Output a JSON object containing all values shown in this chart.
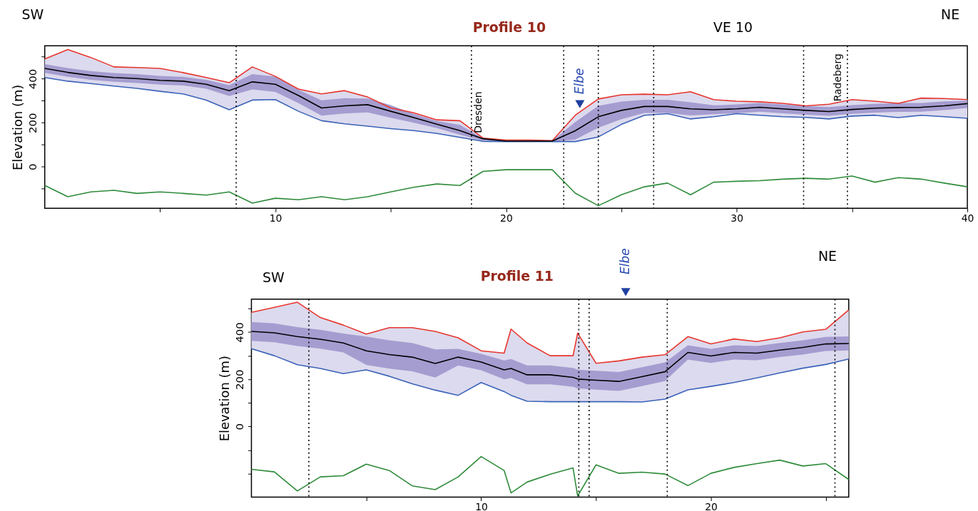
{
  "chart_data": [
    {
      "type": "line",
      "title": "Profile 10",
      "ylabel": "Elevation (m)",
      "annotations": [
        "SW",
        "NE",
        "VE 10",
        {
          "text": "Dresden",
          "x": 18.8,
          "y": 140
        },
        {
          "text": "Elbe",
          "x": 23.2,
          "y": 252
        },
        {
          "text": "Radeberg",
          "x": 34.4,
          "y": 284
        }
      ],
      "x": [
        0,
        1,
        2,
        3,
        4,
        5,
        6,
        7,
        8,
        9,
        10,
        11,
        12,
        13,
        14,
        15,
        16,
        17,
        18,
        19,
        20,
        21,
        22,
        23,
        24,
        25,
        26,
        27,
        28,
        29,
        30,
        31,
        32,
        33,
        34,
        35,
        36,
        37,
        38,
        39,
        40
      ],
      "series": [
        {
          "color": "#e8352c",
          "values": [
            490,
            533,
            497,
            454,
            451,
            447,
            428,
            406,
            382,
            454,
            411,
            353,
            331,
            346,
            317,
            267,
            245,
            213,
            209,
            130,
            121,
            121,
            118,
            234,
            308,
            327,
            330,
            327,
            341,
            305,
            298,
            295,
            288,
            277,
            284,
            305,
            298,
            288,
            312,
            310,
            305
          ]
        },
        {
          "color": "#3a62b8",
          "values": [
            406,
            389,
            378,
            367,
            356,
            343,
            331,
            303,
            259,
            303,
            305,
            252,
            209,
            195,
            184,
            173,
            164,
            151,
            133,
            115,
            114,
            114,
            114,
            114,
            135,
            192,
            234,
            241,
            217,
            227,
            241,
            234,
            227,
            224,
            217,
            230,
            234,
            223,
            234,
            227,
            220
          ],
          "lower": [
            406,
            389,
            378,
            367,
            356,
            343,
            331,
            303,
            259,
            303,
            305,
            252,
            209,
            195,
            184,
            173,
            164,
            151,
            133,
            115,
            114,
            114,
            114,
            114,
            135,
            192,
            234,
            241,
            217,
            227,
            241,
            234,
            227,
            224,
            217,
            230,
            234,
            223,
            234,
            227,
            220
          ],
          "upper": [
            490,
            533,
            497,
            454,
            451,
            447,
            428,
            406,
            382,
            454,
            411,
            353,
            331,
            346,
            317,
            267,
            245,
            213,
            209,
            130,
            121,
            121,
            118,
            234,
            308,
            327,
            330,
            327,
            341,
            305,
            298,
            295,
            288,
            277,
            284,
            305,
            298,
            288,
            312,
            310,
            305
          ]
        },
        {
          "color": "#000000",
          "values": [
            447,
            429,
            415,
            406,
            401,
            393,
            389,
            375,
            346,
            386,
            375,
            324,
            267,
            277,
            282,
            252,
            223,
            193,
            164,
            127,
            116,
            116,
            116,
            163,
            227,
            256,
            274,
            274,
            263,
            259,
            263,
            270,
            263,
            256,
            251,
            260,
            266,
            269,
            270,
            277,
            287
          ],
          "lower": [
            427,
            409,
            395,
            386,
            381,
            373,
            369,
            355,
            321,
            351,
            340,
            289,
            232,
            242,
            247,
            222,
            200,
            175,
            145,
            118,
            114,
            114,
            114,
            123,
            177,
            216,
            244,
            244,
            233,
            239,
            243,
            250,
            243,
            236,
            231,
            240,
            246,
            249,
            250,
            257,
            267
          ],
          "upper": [
            467,
            449,
            435,
            426,
            421,
            413,
            409,
            395,
            371,
            421,
            410,
            350,
            302,
            312,
            310,
            280,
            240,
            208,
            190,
            129,
            121,
            121,
            118,
            203,
            277,
            296,
            304,
            304,
            293,
            279,
            283,
            290,
            283,
            276,
            271,
            280,
            286,
            289,
            290,
            297,
            300
          ]
        },
        {
          "color": "#2e8b3a",
          "values": [
            -86,
            -137,
            -115,
            -108,
            -122,
            -115,
            -122,
            -130,
            -115,
            -166,
            -144,
            -151,
            -137,
            -151,
            -137,
            -115,
            -94,
            -79,
            -86,
            -22,
            -14,
            -14,
            -14,
            -121,
            -178,
            -128,
            -92,
            -75,
            -128,
            -71,
            -67,
            -64,
            -57,
            -53,
            -57,
            -43,
            -71,
            -50,
            -57,
            -75,
            -92
          ]
        }
      ],
      "xlim": [
        0,
        40
      ],
      "xticks": [
        {
          "value": 5,
          "label": null
        },
        10,
        {
          "value": 15,
          "label": null
        },
        20,
        {
          "value": 25,
          "label": null
        },
        30,
        {
          "value": 35,
          "label": null
        },
        40
      ],
      "ylim": [
        -190,
        550
      ],
      "yticks": [
        {
          "value": -100,
          "label": null
        },
        0,
        {
          "value": 100,
          "label": null
        },
        200,
        {
          "value": 300,
          "label": null
        },
        400,
        {
          "value": 500,
          "label": null
        }
      ],
      "ref_lines": [
        {
          "axis": "x",
          "value": 8.3,
          "line_style": "dotted"
        },
        {
          "axis": "x",
          "value": 18.5,
          "line_style": "dotted"
        },
        {
          "axis": "x",
          "value": 22.5,
          "line_style": "dotted"
        },
        {
          "axis": "x",
          "value": 24.0,
          "line_style": "dotted"
        },
        {
          "axis": "x",
          "value": 26.4,
          "line_style": "dotted"
        },
        {
          "axis": "x",
          "value": 32.9,
          "line_style": "dotted"
        },
        {
          "axis": "x",
          "value": 34.8,
          "line_style": "dotted"
        }
      ],
      "grid": false,
      "line_style": "solid",
      "marker": "none"
    },
    {
      "type": "line",
      "title": "Profile 11",
      "ylabel": "Elevation (m)",
      "annotations": [
        "SW",
        "NE",
        "Elbe"
      ],
      "x": [
        0,
        1,
        2,
        3,
        4,
        5,
        6,
        7,
        8,
        9,
        10,
        11,
        11.3,
        12,
        13,
        14,
        14.2,
        15,
        16,
        17,
        18,
        19,
        20,
        21,
        22,
        23,
        24,
        25,
        26
      ],
      "series": [
        {
          "color": "#e8352c",
          "values": [
            484,
            505,
            527,
            462,
            430,
            392,
            419,
            419,
            403,
            376,
            321,
            311,
            413,
            354,
            300,
            300,
            396,
            268,
            278,
            294,
            304,
            381,
            350,
            371,
            360,
            376,
            401,
            412,
            494
          ]
        },
        {
          "color": "#3a62b8",
          "values": [
            330,
            300,
            262,
            246,
            224,
            240,
            213,
            181,
            154,
            132,
            186,
            148,
            132,
            107,
            105,
            105,
            105,
            105,
            105,
            104,
            116,
            155,
            170,
            186,
            206,
            227,
            247,
            263,
            286
          ],
          "lower": [
            330,
            300,
            262,
            246,
            224,
            240,
            213,
            181,
            154,
            132,
            186,
            148,
            132,
            107,
            105,
            105,
            105,
            105,
            105,
            104,
            116,
            155,
            170,
            186,
            206,
            227,
            247,
            263,
            286
          ],
          "upper": [
            484,
            505,
            527,
            462,
            430,
            392,
            419,
            419,
            403,
            376,
            321,
            311,
            413,
            354,
            300,
            300,
            396,
            268,
            278,
            294,
            304,
            381,
            350,
            371,
            360,
            376,
            401,
            412,
            494
          ]
        },
        {
          "color": "#000000",
          "values": [
            403,
            397,
            381,
            370,
            354,
            321,
            305,
            294,
            267,
            294,
            273,
            240,
            246,
            219,
            219,
            208,
            201,
            196,
            191,
            211,
            232,
            314,
            299,
            314,
            311,
            324,
            335,
            350,
            352
          ],
          "lower": [
            363,
            357,
            341,
            330,
            314,
            261,
            245,
            234,
            207,
            259,
            238,
            200,
            206,
            179,
            179,
            168,
            161,
            156,
            151,
            171,
            192,
            284,
            269,
            284,
            281,
            294,
            305,
            320,
            322
          ],
          "upper": [
            443,
            437,
            421,
            410,
            394,
            381,
            365,
            354,
            327,
            329,
            308,
            280,
            286,
            259,
            259,
            248,
            241,
            236,
            231,
            251,
            272,
            344,
            329,
            344,
            341,
            354,
            365,
            380,
            382
          ]
        },
        {
          "color": "#2e8b3a",
          "values": [
            -182,
            -193,
            -274,
            -214,
            -209,
            -160,
            -187,
            -252,
            -268,
            -214,
            -128,
            -187,
            -282,
            -236,
            -203,
            -176,
            -295,
            -163,
            -199,
            -194,
            -202,
            -251,
            -199,
            -174,
            -158,
            -143,
            -168,
            -158,
            -225
          ]
        }
      ],
      "xlim": [
        0,
        26
      ],
      "xticks": [
        {
          "value": 5,
          "label": null
        },
        10,
        {
          "value": 15,
          "label": null
        },
        20,
        {
          "value": 25,
          "label": null
        }
      ],
      "ylim": [
        -300,
        540
      ],
      "yticks": [
        {
          "value": -200,
          "label": null
        },
        {
          "value": -100,
          "label": null
        },
        0,
        {
          "value": 100,
          "label": null
        },
        200,
        {
          "value": 300,
          "label": null
        },
        400,
        {
          "value": 500,
          "label": null
        }
      ],
      "ref_lines": [
        {
          "axis": "x",
          "value": 2.5,
          "line_style": "dotted"
        },
        {
          "axis": "x",
          "value": 14.25,
          "line_style": "dotted"
        },
        {
          "axis": "x",
          "value": 14.7,
          "line_style": "dotted"
        },
        {
          "axis": "x",
          "value": 18.1,
          "line_style": "dotted"
        },
        {
          "axis": "x",
          "value": 25.4,
          "line_style": "dotted"
        }
      ],
      "grid": false,
      "line_style": "solid",
      "marker": "none"
    }
  ]
}
